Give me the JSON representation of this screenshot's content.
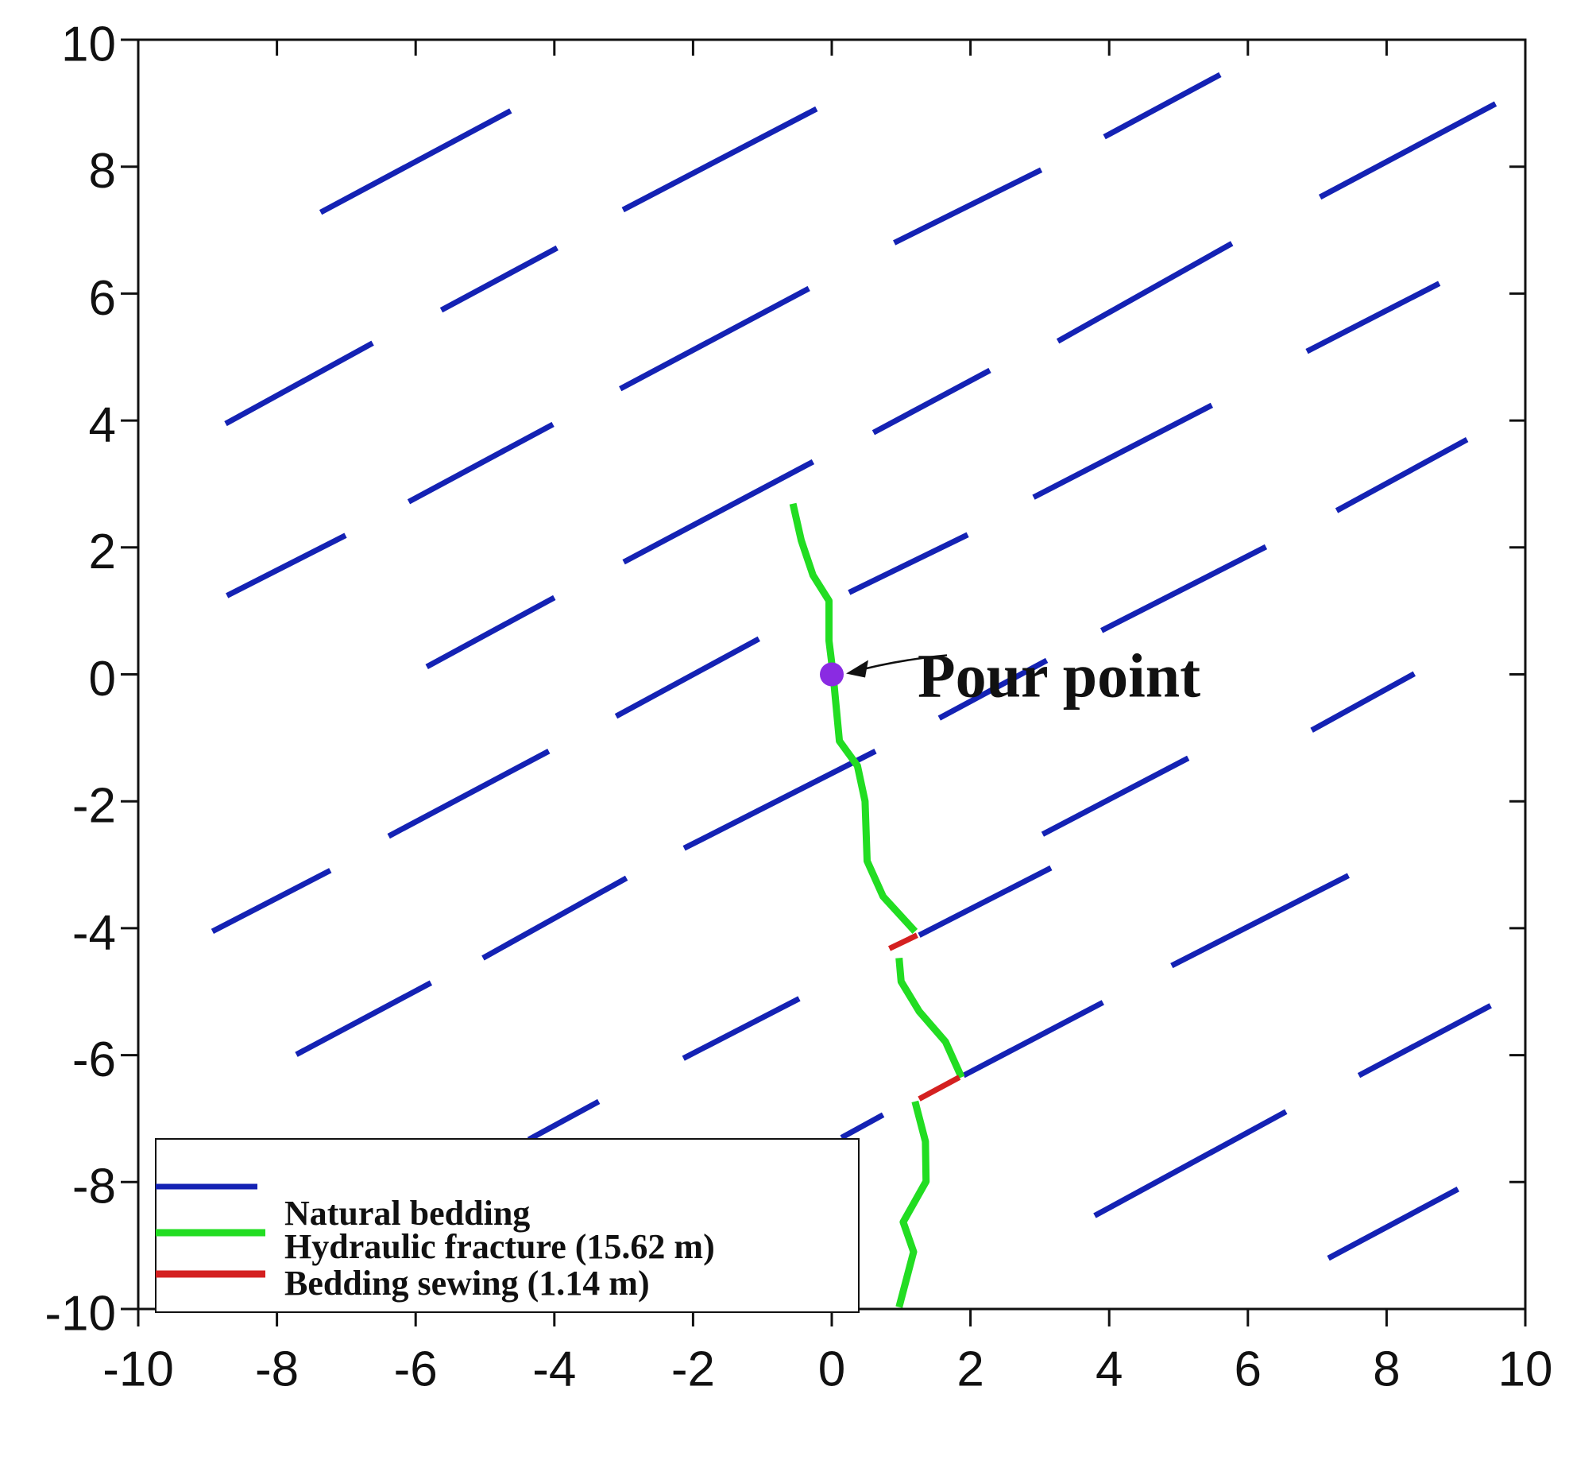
{
  "chart_data": {
    "type": "line",
    "xlim": [
      -10,
      10
    ],
    "ylim": [
      -10,
      10
    ],
    "xticks": [
      -10,
      -8,
      -6,
      -4,
      -2,
      0,
      2,
      4,
      6,
      8,
      10
    ],
    "yticks": [
      -10,
      -8,
      -6,
      -4,
      -2,
      0,
      2,
      4,
      6,
      8,
      10
    ],
    "grid": false,
    "legend": "lower left",
    "series": [
      {
        "name": "Natural bedding",
        "color": "#1422b4",
        "x": [
          -7.37,
          -4.63,
          null,
          -3.01,
          -0.22,
          null,
          3.93,
          5.6,
          null,
          7.04,
          9.57,
          null,
          0.9,
          3.02,
          null,
          -5.63,
          -3.96,
          null,
          3.26,
          5.77,
          null,
          -8.74,
          -6.62,
          null,
          -3.05,
          -0.33,
          null,
          6.85,
          8.76,
          null,
          0.6,
          2.28,
          null,
          -6.1,
          -4.02,
          null,
          2.91,
          5.48,
          null,
          -8.72,
          -7.01,
          null,
          -3.0,
          -0.27,
          null,
          7.28,
          9.16,
          null,
          0.25,
          1.96,
          null,
          -5.84,
          -4.0,
          null,
          3.89,
          6.26,
          null,
          -3.11,
          -1.05,
          null,
          1.55,
          3.1,
          null,
          6.92,
          8.4,
          null,
          -6.39,
          -4.08,
          null,
          -2.13,
          0.63,
          null,
          3.04,
          5.14,
          null,
          -8.93,
          -7.23,
          null,
          -5.03,
          -2.96,
          null,
          1.26,
          3.16,
          null,
          4.9,
          7.45,
          null,
          -7.72,
          -5.78,
          null,
          -2.14,
          -0.47,
          null,
          1.9,
          3.91,
          null,
          7.6,
          9.5,
          null,
          -4.37,
          -3.36,
          null,
          0.14,
          0.74,
          null,
          3.79,
          6.55,
          null,
          7.16,
          9.03
        ],
        "values": [
          7.28,
          8.88,
          null,
          7.32,
          8.91,
          null,
          8.47,
          9.45,
          null,
          7.52,
          8.99,
          null,
          6.8,
          7.95,
          null,
          5.74,
          6.72,
          null,
          5.25,
          6.79,
          null,
          3.95,
          5.22,
          null,
          4.5,
          6.08,
          null,
          5.09,
          6.16,
          null,
          3.81,
          4.79,
          null,
          2.72,
          3.94,
          null,
          2.79,
          4.24,
          null,
          1.24,
          2.19,
          null,
          1.77,
          3.35,
          null,
          2.58,
          3.7,
          null,
          1.29,
          2.2,
          null,
          0.12,
          1.21,
          null,
          0.69,
          2.01,
          null,
          -0.66,
          0.56,
          null,
          -0.69,
          0.22,
          null,
          -0.88,
          0.01,
          null,
          -2.55,
          -1.21,
          null,
          -2.74,
          -1.21,
          null,
          -2.52,
          -1.32,
          null,
          -4.05,
          -3.09,
          null,
          -4.47,
          -3.21,
          null,
          -4.11,
          -3.05,
          null,
          -4.59,
          -3.17,
          null,
          -5.99,
          -4.86,
          null,
          -6.05,
          -5.11,
          null,
          -6.32,
          -5.17,
          null,
          -6.32,
          -5.22,
          null,
          -7.33,
          -6.73,
          null,
          -7.3,
          -6.94,
          null,
          -8.53,
          -6.89,
          null,
          -9.2,
          -8.11
        ]
      },
      {
        "name": "Hydraulic fracture (15.62 m)",
        "color": "#22dd22",
        "x": [
          -0.56,
          -0.44,
          -0.27,
          -0.04,
          -0.04,
          0.02,
          0.11,
          0.37,
          0.48,
          0.51,
          0.74,
          1.2,
          null,
          0.97,
          1.0,
          1.26,
          1.64,
          1.87,
          null,
          1.2,
          1.35,
          1.36,
          1.03,
          1.18,
          0.97
        ],
        "values": [
          2.69,
          2.11,
          1.56,
          1.16,
          0.53,
          0.0,
          -1.05,
          -1.44,
          -2.0,
          -2.94,
          -3.5,
          -4.05,
          null,
          -4.47,
          -4.84,
          -5.31,
          -5.79,
          -6.35,
          null,
          -6.73,
          -7.36,
          -7.99,
          -8.63,
          -9.1,
          -9.97
        ]
      },
      {
        "name": "Bedding sewing (1.14 m)",
        "color": "#d42020",
        "x": [
          0.83,
          1.23,
          null,
          1.26,
          1.84
        ],
        "values": [
          -4.32,
          -4.11,
          null,
          -6.69,
          -6.35
        ]
      }
    ],
    "annotations": [
      {
        "text": "Pour point",
        "x": 0,
        "y": 0,
        "color": "#8a2be2"
      }
    ]
  }
}
